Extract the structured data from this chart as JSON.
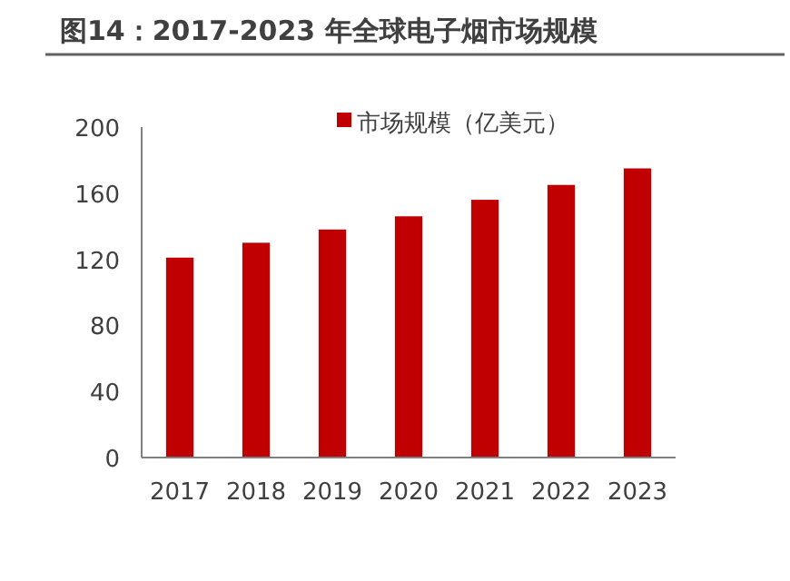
{
  "chart_data": {
    "type": "bar",
    "title": "图14：2017-2023 年全球电子烟市场规模",
    "categories": [
      "2017",
      "2018",
      "2019",
      "2020",
      "2021",
      "2022",
      "2023"
    ],
    "series": [
      {
        "name": "市场规模（亿美元）",
        "color": "#c00000",
        "values": [
          121,
          130,
          138,
          146,
          156,
          165,
          175
        ]
      }
    ],
    "ylim": [
      0,
      200
    ],
    "yticks": [
      0,
      40,
      80,
      120,
      160,
      200
    ],
    "legend": "top",
    "grid": false
  }
}
